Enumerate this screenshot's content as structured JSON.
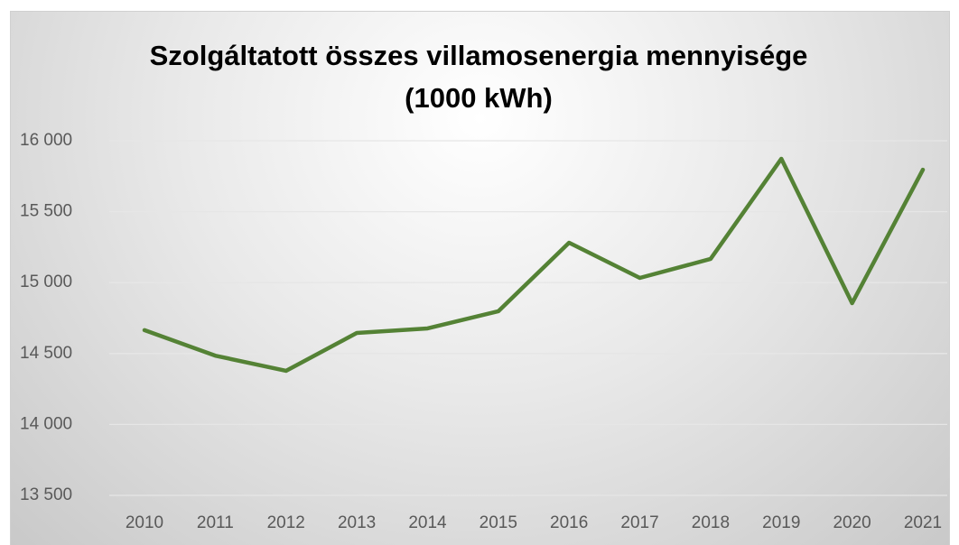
{
  "chart_data": {
    "type": "line",
    "title": "Szolgáltatott összes villamosenergia mennyisége (1000 kWh)",
    "categories": [
      "2010",
      "2011",
      "2012",
      "2013",
      "2014",
      "2015",
      "2016",
      "2017",
      "2018",
      "2019",
      "2020",
      "2021"
    ],
    "values": [
      14665,
      14485,
      14378,
      14645,
      14677,
      14798,
      15281,
      15033,
      15167,
      15873,
      14855,
      15796
    ],
    "color": "#548235",
    "ylim": [
      13500,
      16000
    ],
    "yticks": [
      {
        "value": 13500,
        "label": "13 500"
      },
      {
        "value": 14000,
        "label": "14 000"
      },
      {
        "value": 14500,
        "label": "14 500"
      },
      {
        "value": 15000,
        "label": "15 000"
      },
      {
        "value": 15500,
        "label": "15 500"
      },
      {
        "value": 16000,
        "label": "16 000"
      }
    ],
    "grid": true
  }
}
